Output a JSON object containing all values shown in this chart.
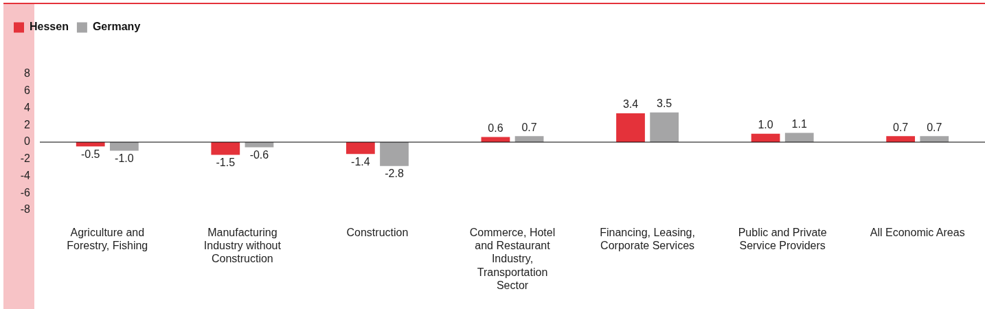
{
  "chart_data": {
    "type": "bar",
    "categories": [
      "Agriculture and Forestry, Fishing",
      "Manufacturing Industry without Construction",
      "Construction",
      "Commerce, Hotel and Restaurant Industry, Transportation Sector",
      "Financing, Leasing, Corporate Services",
      "Public and Private Service Providers",
      "All Economic Areas"
    ],
    "series": [
      {
        "name": "Hessen",
        "color": "#e4323a",
        "values": [
          -0.5,
          -1.5,
          -1.4,
          0.6,
          3.4,
          1.0,
          0.7
        ],
        "value_labels": [
          "-0.5",
          "-1.5",
          "-1.4",
          "0.6",
          "3.4",
          "1.0",
          "0.7"
        ]
      },
      {
        "name": "Germany",
        "color": "#a5a5a6",
        "values": [
          -1.0,
          -0.6,
          -2.8,
          0.7,
          3.5,
          1.1,
          0.7
        ],
        "value_labels": [
          "-1.0",
          "-0.6",
          "-2.8",
          "0.7",
          "3.5",
          "1.1",
          "0.7"
        ]
      }
    ],
    "ylim": [
      -8,
      8
    ],
    "yticks": [
      -8,
      -6,
      -4,
      -2,
      0,
      2,
      4,
      6,
      8
    ],
    "grid": false,
    "ref_lines": [
      {
        "axis": "y",
        "value": 0,
        "color": "#000000"
      }
    ],
    "legend": "top left"
  }
}
